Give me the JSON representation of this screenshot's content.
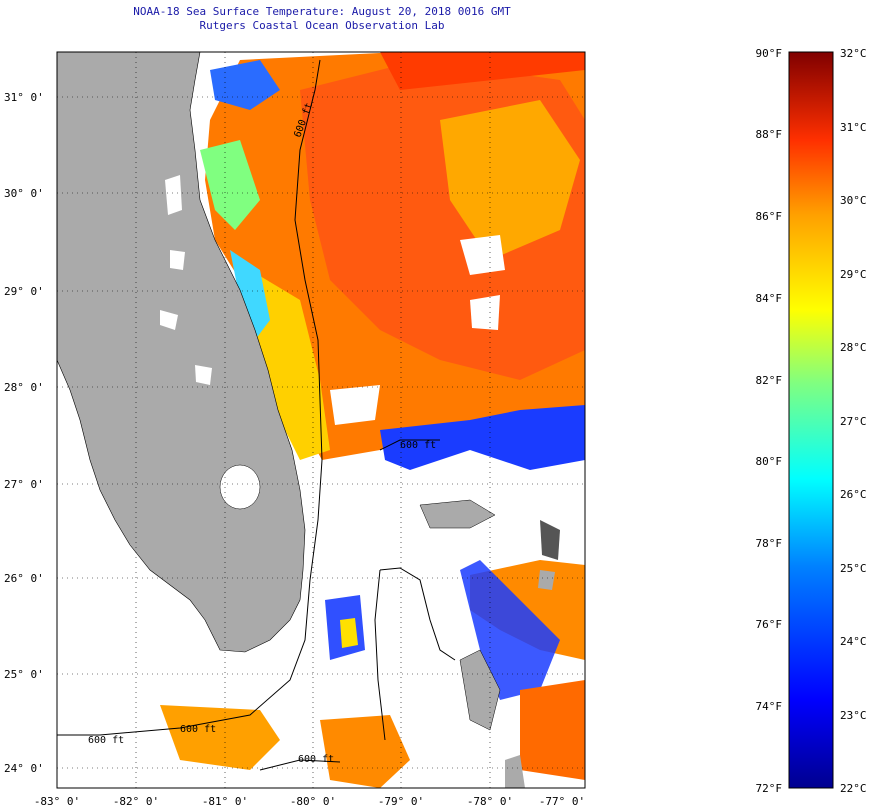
{
  "title": {
    "line1": "NOAA-18 Sea Surface Temperature:  August 20, 2018 0016 GMT",
    "line2": "Rutgers Coastal Ocean Observation Lab"
  },
  "axes": {
    "lat_labels": [
      "31° 0'",
      "30° 0'",
      "29° 0'",
      "28° 0'",
      "27° 0'",
      "26° 0'",
      "25° 0'",
      "24° 0'"
    ],
    "lon_labels": [
      "-83° 0'",
      "-82° 0'",
      "-81° 0'",
      "-80° 0'",
      "-79° 0'",
      "-78° 0'",
      "-77° 0'"
    ]
  },
  "contour_labels": [
    "600 ft",
    "600 ft",
    "600 ft",
    "600 ft",
    "600 ft"
  ],
  "colorbar": {
    "fahrenheit_labels": [
      "90°F",
      "88°F",
      "86°F",
      "84°F",
      "82°F",
      "80°F",
      "78°F",
      "76°F",
      "74°F",
      "72°F"
    ],
    "celsius_labels": [
      "32°C",
      "31°C",
      "30°C",
      "29°C",
      "28°C",
      "27°C",
      "26°C",
      "25°C",
      "24°C",
      "23°C",
      "22°C"
    ]
  },
  "colors": {
    "land": "#a9a9a9",
    "title_text": "#1a1aa8",
    "warm": "#ff6a00",
    "hot": "#ff3b00",
    "mid": "#ffb000",
    "cool": "#33ccff",
    "cold": "#0033cc"
  }
}
